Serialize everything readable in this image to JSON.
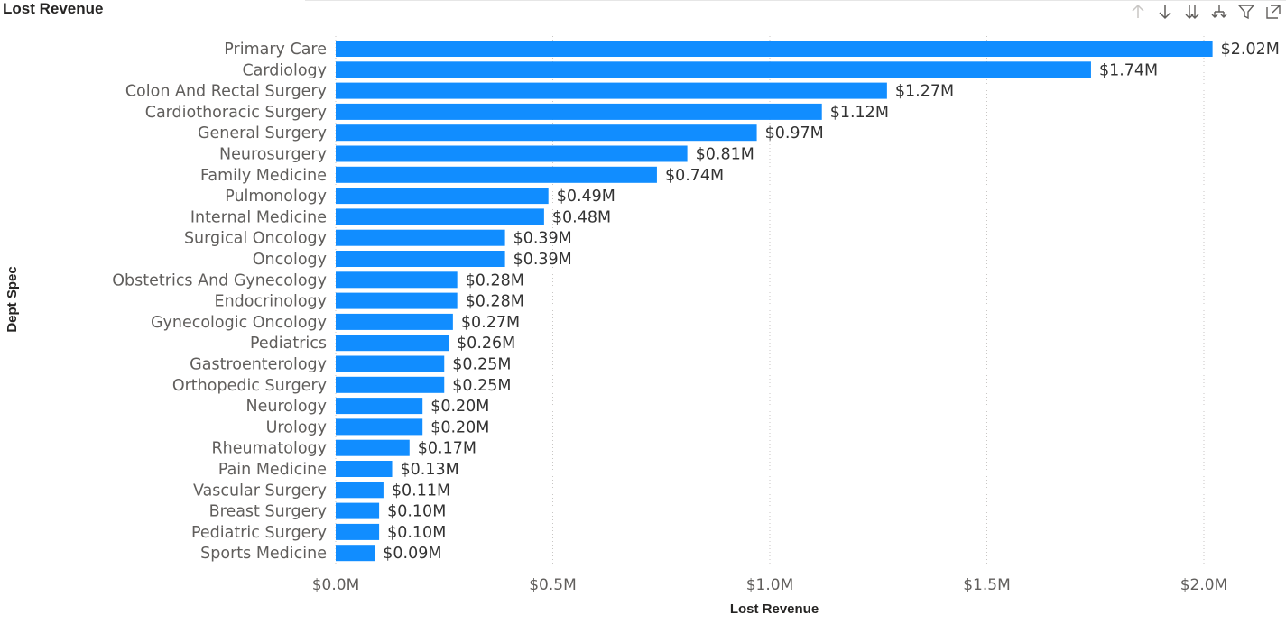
{
  "visual": {
    "title": "Lost Revenue"
  },
  "toolbar": {
    "icons": [
      "drill-up-icon",
      "drill-down-icon",
      "expand-all-levels-icon",
      "expand-hierarchy-icon",
      "filter-icon",
      "focus-mode-icon"
    ]
  },
  "colors": {
    "bar": "#118DFF",
    "gridline": "#c8c6c4"
  },
  "chart_data": {
    "type": "bar",
    "orientation": "horizontal",
    "title": "Lost Revenue",
    "xlabel": "Lost Revenue",
    "ylabel": "Dept Spec",
    "xlim": [
      0,
      2.05
    ],
    "x_unit": "$M",
    "grid": true,
    "x_ticks": [
      {
        "value": 0.0,
        "label": "$0.0M"
      },
      {
        "value": 0.5,
        "label": "$0.5M"
      },
      {
        "value": 1.0,
        "label": "$1.0M"
      },
      {
        "value": 1.5,
        "label": "$1.5M"
      },
      {
        "value": 2.0,
        "label": "$2.0M"
      }
    ],
    "categories": [
      "Primary Care",
      "Cardiology",
      "Colon And Rectal Surgery",
      "Cardiothoracic Surgery",
      "General Surgery",
      "Neurosurgery",
      "Family Medicine",
      "Pulmonology",
      "Internal Medicine",
      "Surgical Oncology",
      "Oncology",
      "Obstetrics And Gynecology",
      "Endocrinology",
      "Gynecologic Oncology",
      "Pediatrics",
      "Gastroenterology",
      "Orthopedic Surgery",
      "Neurology",
      "Urology",
      "Rheumatology",
      "Pain Medicine",
      "Vascular Surgery",
      "Breast Surgery",
      "Pediatric Surgery",
      "Sports Medicine"
    ],
    "values": [
      2.02,
      1.74,
      1.27,
      1.12,
      0.97,
      0.81,
      0.74,
      0.49,
      0.48,
      0.39,
      0.39,
      0.28,
      0.28,
      0.27,
      0.26,
      0.25,
      0.25,
      0.2,
      0.2,
      0.17,
      0.13,
      0.11,
      0.1,
      0.1,
      0.09
    ],
    "value_labels": [
      "$2.02M",
      "$1.74M",
      "$1.27M",
      "$1.12M",
      "$0.97M",
      "$0.81M",
      "$0.74M",
      "$0.49M",
      "$0.48M",
      "$0.39M",
      "$0.39M",
      "$0.28M",
      "$0.28M",
      "$0.27M",
      "$0.26M",
      "$0.25M",
      "$0.25M",
      "$0.20M",
      "$0.20M",
      "$0.17M",
      "$0.13M",
      "$0.11M",
      "$0.10M",
      "$0.10M",
      "$0.09M"
    ]
  }
}
